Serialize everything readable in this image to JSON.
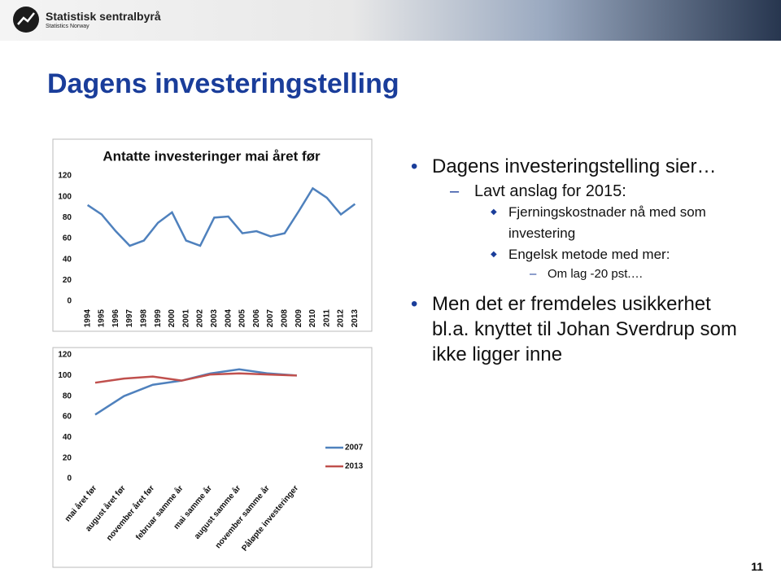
{
  "header": {
    "logo_name": "Statistisk sentralbyrå",
    "logo_subtitle": "Statistics Norway"
  },
  "title": "Dagens investeringstelling",
  "bullets": [
    {
      "text": "Dagens investeringstelling sier…",
      "children": [
        {
          "text": "Lavt anslag for 2015:",
          "children": [
            {
              "text": "Fjerningskostnader nå med som investering"
            },
            {
              "text": "Engelsk metode med mer:",
              "children": [
                {
                  "text": "Om lag -20 pst.…"
                }
              ]
            }
          ]
        }
      ]
    },
    {
      "text": "Men det er fremdeles usikkerhet bl.a. knyttet til Johan Sverdrup som ikke ligger inne"
    }
  ],
  "page_number": "11",
  "chart_data": [
    {
      "type": "line",
      "title": "Antatte investeringer mai året før",
      "categories": [
        "1994",
        "1995",
        "1996",
        "1997",
        "1998",
        "1999",
        "2000",
        "2001",
        "2002",
        "2003",
        "2004",
        "2005",
        "2006",
        "2007",
        "2008",
        "2009",
        "2010",
        "2011",
        "2012",
        "2013"
      ],
      "values": [
        92,
        83,
        67,
        53,
        58,
        75,
        85,
        58,
        53,
        80,
        81,
        65,
        67,
        62,
        65,
        86,
        108,
        99,
        83,
        93
      ],
      "color": "#4f81bd",
      "ylim": [
        0,
        120
      ],
      "yticks": [
        0,
        20,
        40,
        60,
        80,
        100,
        120
      ],
      "grid": false
    },
    {
      "type": "line",
      "categories": [
        "mai året før",
        "august året før",
        "november året før",
        "februar samme år",
        "mai samme år",
        "august samme år",
        "november samme år",
        "Påløpte investeringer"
      ],
      "series": [
        {
          "name": "2007",
          "color": "#4f81bd",
          "values": [
            62,
            80,
            91,
            95,
            102,
            106,
            102,
            100
          ]
        },
        {
          "name": "2013",
          "color": "#c0504d",
          "values": [
            93,
            97,
            99,
            95,
            101,
            102,
            101,
            100
          ]
        }
      ],
      "ylim": [
        0,
        120
      ],
      "yticks": [
        0,
        20,
        40,
        60,
        80,
        100,
        120
      ],
      "grid": false,
      "legend": "right"
    }
  ]
}
